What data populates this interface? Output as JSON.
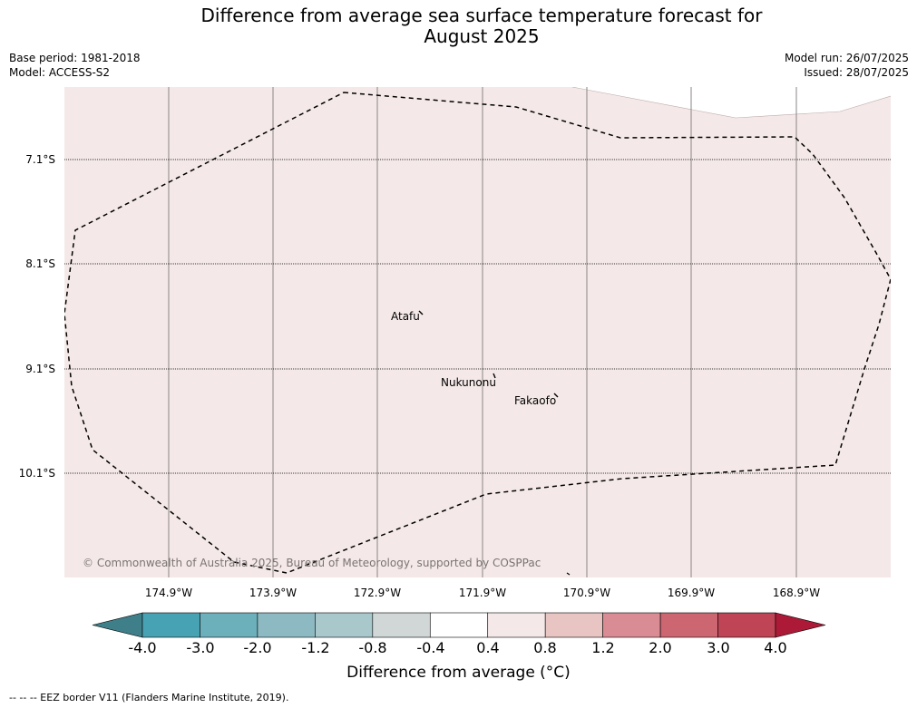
{
  "title_line1": "Difference from average sea surface temperature forecast for",
  "title_line2": "August 2025",
  "base_period": "Base period: 1981-2018",
  "model": "Model: ACCESS-S2",
  "model_run": "Model run: 26/07/2025",
  "issued": "Issued: 28/07/2025",
  "latitudes": [
    "7.1°S",
    "8.1°S",
    "9.1°S",
    "10.1°S"
  ],
  "longitudes": [
    "174.9°W",
    "173.9°W",
    "172.9°W",
    "171.9°W",
    "170.9°W",
    "169.9°W",
    "168.9°W"
  ],
  "places": [
    {
      "name": "Atafu"
    },
    {
      "name": "Nukunonu"
    },
    {
      "name": "Fakaofo"
    }
  ],
  "copyright": "© Commonwealth of Australia 2025, Bureau of Meteorology, supported by COSPPac",
  "colorbar": {
    "ticks": [
      "-4.0",
      "-3.0",
      "-2.0",
      "-1.2",
      "-0.8",
      "-0.4",
      "0.4",
      "0.8",
      "1.2",
      "2.0",
      "3.0",
      "4.0"
    ],
    "under_color": "#3e7f89",
    "over_color": "#ac1a37",
    "colors": [
      "#47a3b3",
      "#6cb0bc",
      "#8dbac2",
      "#a9c8cb",
      "#d0d7d6",
      "#ffffff",
      "#f4e9e8",
      "#e8c5c2",
      "#d98c94",
      "#cc6671",
      "#be4456"
    ],
    "label": "Difference from average (°C)"
  },
  "map_fill_color": "#f4e9e8",
  "footer": "--  --  -- EEZ border V11 (Flanders Marine Institute, 2019)."
}
